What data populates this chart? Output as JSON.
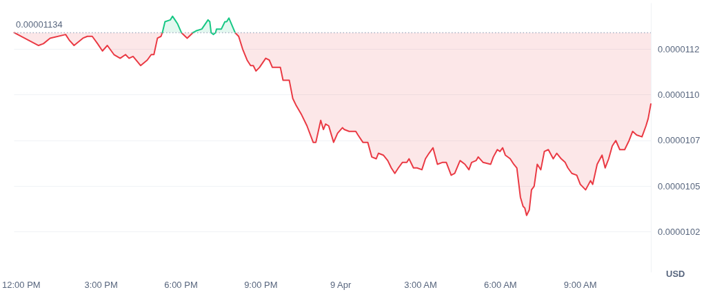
{
  "chart_data": {
    "type": "line",
    "ylabel": "USD",
    "xlim": [
      "--04-08T11:44",
      "--04-09T11:39"
    ],
    "xticks": [
      {
        "value": "--04-08T12:00",
        "label": "12:00 PM"
      },
      {
        "value": "--04-08T15:00",
        "label": "3:00 PM"
      },
      {
        "value": "--04-08T18:00",
        "label": "6:00 PM"
      },
      {
        "value": "--04-08T21:00",
        "label": "9:00 PM"
      },
      {
        "value": "--04-09T00:00",
        "label": "9 Apr"
      },
      {
        "value": "--04-09T03:00",
        "label": "3:00 AM"
      },
      {
        "value": "--04-09T06:00",
        "label": "6:00 AM"
      },
      {
        "value": "--04-09T09:00",
        "label": "9:00 AM"
      }
    ],
    "ylim": [
      1.003e-05,
      1.15e-05
    ],
    "yticks": [
      {
        "value": 1.025e-05,
        "label": "0.0000102"
      },
      {
        "value": 1.05e-05,
        "label": "0.0000105"
      },
      {
        "value": 1.075e-05,
        "label": "0.0000107"
      },
      {
        "value": 1.1e-05,
        "label": "0.0000110"
      },
      {
        "value": 1.125e-05,
        "label": "0.0000112"
      }
    ],
    "grid": "y",
    "marker": "none",
    "line_style": "solid",
    "ref_lines": [
      {
        "axis": "y",
        "value": 1.134e-05,
        "label": "0.00001134",
        "color": "#a6b0c3",
        "line_style": "dotted"
      }
    ],
    "series": [
      {
        "color": "#ea3943",
        "x": [
          "--04-08T11:44",
          "--04-08T12:39",
          "--04-08T12:50",
          "--04-08T13:05",
          "--04-08T13:40",
          "--04-08T13:48",
          "--04-08T13:59",
          "--04-08T14:19",
          "--04-08T14:29",
          "--04-08T14:40",
          "--04-08T14:52",
          "--04-08T15:03",
          "--04-08T15:14",
          "--04-08T15:29",
          "--04-08T15:43",
          "--04-08T15:55",
          "--04-08T16:03",
          "--04-08T16:12",
          "--04-08T16:29",
          "--04-08T16:44",
          "--04-08T16:53",
          "--04-08T16:59",
          "--04-08T17:07",
          "--04-08T17:15",
          "--04-08T17:18",
          "--04-08T17:19",
          "--04-08T18:01",
          "--04-08T18:14",
          "--04-08T18:27",
          "--04-08T18:28",
          "--04-08T20:02",
          "--04-08T20:10",
          "--04-08T20:19",
          "--04-08T20:29",
          "--04-08T20:37",
          "--04-08T20:43",
          "--04-08T20:49",
          "--04-08T20:57",
          "--04-08T21:11",
          "--04-08T21:19",
          "--04-08T21:26",
          "--04-08T21:34",
          "--04-08T21:44",
          "--04-08T21:50",
          "--04-08T22:04",
          "--04-08T22:12",
          "--04-08T22:20",
          "--04-08T22:32",
          "--04-08T22:44",
          "--04-08T22:58",
          "--04-08T23:04",
          "--04-08T23:15",
          "--04-08T23:21",
          "--04-08T23:26",
          "--04-08T23:33",
          "--04-08T23:44",
          "--04-08T23:53",
          "--04-09T00:04",
          "--04-09T00:08",
          "--04-09T00:19",
          "--04-09T00:34",
          "--04-09T00:39",
          "--04-09T00:50",
          "--04-09T01:01",
          "--04-09T01:10",
          "--04-09T01:20",
          "--04-09T01:25",
          "--04-09T01:36",
          "--04-09T01:46",
          "--04-09T01:54",
          "--04-09T02:02",
          "--04-09T02:10",
          "--04-09T02:19",
          "--04-09T02:29",
          "--04-09T02:34",
          "--04-09T02:44",
          "--04-09T02:52",
          "--04-09T03:03",
          "--04-09T03:11",
          "--04-09T03:19",
          "--04-09T03:28",
          "--04-09T03:38",
          "--04-09T03:49",
          "--04-09T03:58",
          "--04-09T04:09",
          "--04-09T04:17",
          "--04-09T04:29",
          "--04-09T04:40",
          "--04-09T04:49",
          "--04-09T04:55",
          "--04-09T05:05",
          "--04-09T05:10",
          "--04-09T05:21",
          "--04-09T05:38",
          "--04-09T05:44",
          "--04-09T05:53",
          "--04-09T05:59",
          "--04-09T06:05",
          "--04-09T06:11",
          "--04-09T06:22",
          "--04-09T06:30",
          "--04-09T06:37",
          "--04-09T06:45",
          "--04-09T06:51",
          "--04-09T06:55",
          "--04-09T06:59",
          "--04-09T07:05",
          "--04-09T07:10",
          "--04-09T07:16",
          "--04-09T07:23",
          "--04-09T07:31",
          "--04-09T07:39",
          "--04-09T07:48",
          "--04-09T07:59",
          "--04-09T08:07",
          "--04-09T08:17",
          "--04-09T08:26",
          "--04-09T08:32",
          "--04-09T08:41",
          "--04-09T08:52",
          "--04-09T09:00",
          "--04-09T09:12",
          "--04-09T09:23",
          "--04-09T09:28",
          "--04-09T09:38",
          "--04-09T09:49",
          "--04-09T09:56",
          "--04-09T10:04",
          "--04-09T10:12",
          "--04-09T10:20",
          "--04-09T10:29",
          "--04-09T10:40",
          "--04-09T10:50",
          "--04-09T10:58",
          "--04-09T11:07",
          "--04-09T11:19",
          "--04-09T11:28",
          "--04-09T11:33",
          "--04-09T11:39"
        ],
        "values": [
          1.134e-05,
          1.127e-05,
          1.128e-05,
          1.131e-05,
          1.133e-05,
          1.13e-05,
          1.127e-05,
          1.131e-05,
          1.132e-05,
          1.132e-05,
          1.128e-05,
          1.124e-05,
          1.127e-05,
          1.122e-05,
          1.12e-05,
          1.122e-05,
          1.12e-05,
          1.121e-05,
          1.116e-05,
          1.119e-05,
          1.122e-05,
          1.122e-05,
          1.131e-05,
          1.132e-05,
          1.134e-05,
          null,
          1.134e-05,
          1.131e-05,
          1.134e-05,
          null,
          1.134e-05,
          1.132e-05,
          1.125e-05,
          1.119e-05,
          1.116e-05,
          1.116e-05,
          1.113e-05,
          1.115e-05,
          1.12e-05,
          1.119e-05,
          1.115e-05,
          1.115e-05,
          1.115e-05,
          1.108e-05,
          1.108e-05,
          1.098e-05,
          1.094e-05,
          1.089e-05,
          1.083e-05,
          1.074e-05,
          1.074e-05,
          1.086e-05,
          1.081e-05,
          1.084e-05,
          1.083e-05,
          1.074e-05,
          1.079e-05,
          1.082e-05,
          1.081e-05,
          1.08e-05,
          1.08e-05,
          1.078e-05,
          1.074e-05,
          1.074e-05,
          1.066e-05,
          1.065e-05,
          1.068e-05,
          1.067e-05,
          1.064e-05,
          1.06e-05,
          1.057e-05,
          1.06e-05,
          1.063e-05,
          1.063e-05,
          1.065e-05,
          1.06e-05,
          1.06e-05,
          1.059e-05,
          1.065e-05,
          1.068e-05,
          1.071e-05,
          1.062e-05,
          1.063e-05,
          1.063e-05,
          1.056e-05,
          1.057e-05,
          1.064e-05,
          1.062e-05,
          1.059e-05,
          1.063e-05,
          1.064e-05,
          1.066e-05,
          1.063e-05,
          1.062e-05,
          1.066e-05,
          1.07e-05,
          1.069e-05,
          1.071e-05,
          1.067e-05,
          1.065e-05,
          1.062e-05,
          1.06e-05,
          1.044e-05,
          1.039e-05,
          1.038e-05,
          1.034e-05,
          1.037e-05,
          1.048e-05,
          1.05e-05,
          1.062e-05,
          1.059e-05,
          1.069e-05,
          1.07e-05,
          1.065e-05,
          1.068e-05,
          1.065e-05,
          1.063e-05,
          1.06e-05,
          1.057e-05,
          1.056e-05,
          1.051e-05,
          1.048e-05,
          1.053e-05,
          1.051e-05,
          1.062e-05,
          1.067e-05,
          1.06e-05,
          1.065e-05,
          1.072e-05,
          1.075e-05,
          1.07e-05,
          1.07e-05,
          1.075e-05,
          1.08e-05,
          1.078e-05,
          1.077e-05,
          1.083e-05,
          1.087e-05,
          1.095e-05
        ],
        "lower": [
          1.134e-05,
          1.127e-05,
          1.128e-05,
          1.131e-05,
          1.133e-05,
          1.13e-05,
          1.127e-05,
          1.131e-05,
          1.132e-05,
          1.132e-05,
          1.128e-05,
          1.124e-05,
          1.127e-05,
          1.122e-05,
          1.12e-05,
          1.122e-05,
          1.12e-05,
          1.121e-05,
          1.116e-05,
          1.119e-05,
          1.122e-05,
          1.122e-05,
          1.131e-05,
          1.132e-05,
          1.134e-05,
          null,
          1.134e-05,
          1.131e-05,
          1.134e-05,
          null,
          1.134e-05,
          1.132e-05,
          1.125e-05,
          1.119e-05,
          1.116e-05,
          1.116e-05,
          1.113e-05,
          1.115e-05,
          1.12e-05,
          1.119e-05,
          1.115e-05,
          1.115e-05,
          1.115e-05,
          1.108e-05,
          1.108e-05,
          1.098e-05,
          1.094e-05,
          1.089e-05,
          1.083e-05,
          1.074e-05,
          1.074e-05,
          1.086e-05,
          1.081e-05,
          1.084e-05,
          1.083e-05,
          1.074e-05,
          1.079e-05,
          1.082e-05,
          1.081e-05,
          1.08e-05,
          1.08e-05,
          1.078e-05,
          1.074e-05,
          1.074e-05,
          1.066e-05,
          1.065e-05,
          1.068e-05,
          1.067e-05,
          1.064e-05,
          1.06e-05,
          1.057e-05,
          1.06e-05,
          1.063e-05,
          1.063e-05,
          1.065e-05,
          1.06e-05,
          1.06e-05,
          1.059e-05,
          1.065e-05,
          1.068e-05,
          1.071e-05,
          1.062e-05,
          1.063e-05,
          1.063e-05,
          1.056e-05,
          1.057e-05,
          1.064e-05,
          1.062e-05,
          1.059e-05,
          1.063e-05,
          1.064e-05,
          1.066e-05,
          1.063e-05,
          1.062e-05,
          1.066e-05,
          1.07e-05,
          1.069e-05,
          1.071e-05,
          1.067e-05,
          1.065e-05,
          1.062e-05,
          1.06e-05,
          1.044e-05,
          1.039e-05,
          1.038e-05,
          1.034e-05,
          1.037e-05,
          1.048e-05,
          1.05e-05,
          1.062e-05,
          1.059e-05,
          1.069e-05,
          1.07e-05,
          1.065e-05,
          1.068e-05,
          1.065e-05,
          1.063e-05,
          1.06e-05,
          1.057e-05,
          1.056e-05,
          1.051e-05,
          1.048e-05,
          1.053e-05,
          1.051e-05,
          1.062e-05,
          1.067e-05,
          1.06e-05,
          1.065e-05,
          1.072e-05,
          1.075e-05,
          1.07e-05,
          1.07e-05,
          1.075e-05,
          1.08e-05,
          1.078e-05,
          1.077e-05,
          1.083e-05,
          1.087e-05,
          1.095e-05
        ],
        "upper": [
          1.134e-05,
          1.134e-05,
          1.134e-05,
          1.134e-05,
          1.134e-05,
          1.134e-05,
          1.134e-05,
          1.134e-05,
          1.134e-05,
          1.134e-05,
          1.134e-05,
          1.134e-05,
          1.134e-05,
          1.134e-05,
          1.134e-05,
          1.134e-05,
          1.134e-05,
          1.134e-05,
          1.134e-05,
          1.134e-05,
          1.134e-05,
          1.134e-05,
          1.134e-05,
          1.134e-05,
          1.134e-05,
          null,
          1.134e-05,
          1.134e-05,
          1.134e-05,
          null,
          1.134e-05,
          1.134e-05,
          1.134e-05,
          1.134e-05,
          1.134e-05,
          1.134e-05,
          1.134e-05,
          1.134e-05,
          1.134e-05,
          1.134e-05,
          1.134e-05,
          1.134e-05,
          1.134e-05,
          1.134e-05,
          1.134e-05,
          1.134e-05,
          1.134e-05,
          1.134e-05,
          1.134e-05,
          1.134e-05,
          1.134e-05,
          1.134e-05,
          1.134e-05,
          1.134e-05,
          1.134e-05,
          1.134e-05,
          1.134e-05,
          1.134e-05,
          1.134e-05,
          1.134e-05,
          1.134e-05,
          1.134e-05,
          1.134e-05,
          1.134e-05,
          1.134e-05,
          1.134e-05,
          1.134e-05,
          1.134e-05,
          1.134e-05,
          1.134e-05,
          1.134e-05,
          1.134e-05,
          1.134e-05,
          1.134e-05,
          1.134e-05,
          1.134e-05,
          1.134e-05,
          1.134e-05,
          1.134e-05,
          1.134e-05,
          1.134e-05,
          1.134e-05,
          1.134e-05,
          1.134e-05,
          1.134e-05,
          1.134e-05,
          1.134e-05,
          1.134e-05,
          1.134e-05,
          1.134e-05,
          1.134e-05,
          1.134e-05,
          1.134e-05,
          1.134e-05,
          1.134e-05,
          1.134e-05,
          1.134e-05,
          1.134e-05,
          1.134e-05,
          1.134e-05,
          1.134e-05,
          1.134e-05,
          1.134e-05,
          1.134e-05,
          1.134e-05,
          1.134e-05,
          1.134e-05,
          1.134e-05,
          1.134e-05,
          1.134e-05,
          1.134e-05,
          1.134e-05,
          1.134e-05,
          1.134e-05,
          1.134e-05,
          1.134e-05,
          1.134e-05,
          1.134e-05,
          1.134e-05,
          1.134e-05,
          1.134e-05,
          1.134e-05,
          1.134e-05,
          1.134e-05,
          1.134e-05,
          1.134e-05,
          1.134e-05,
          1.134e-05,
          1.134e-05,
          1.134e-05,
          1.134e-05,
          1.134e-05,
          1.134e-05,
          1.134e-05,
          1.134e-05,
          1.134e-05,
          1.134e-05,
          1.134e-05,
          1.134e-05
        ]
      },
      {
        "color": "#16c784",
        "x": [
          "--04-08T17:18",
          "--04-08T17:24",
          "--04-08T17:36",
          "--04-08T17:41",
          "--04-08T17:52",
          "--04-08T18:01",
          "--04-08T18:02",
          "--04-08T18:27",
          "--04-08T18:34",
          "--04-08T18:47",
          "--04-08T19:01",
          "--04-08T19:05",
          "--04-08T19:08",
          "--04-08T19:13",
          "--04-08T19:18",
          "--04-08T19:20",
          "--04-08T19:31",
          "--04-08T19:39",
          "--04-08T19:43",
          "--04-08T19:48",
          "--04-08T20:02"
        ],
        "values": [
          1.134e-05,
          1.14e-05,
          1.141e-05,
          1.143e-05,
          1.139e-05,
          1.134e-05,
          null,
          1.134e-05,
          1.135e-05,
          1.136e-05,
          1.141e-05,
          1.14e-05,
          1.134e-05,
          1.133e-05,
          1.134e-05,
          1.136e-05,
          1.136e-05,
          1.14e-05,
          1.14e-05,
          1.142e-05,
          1.134e-05
        ],
        "lower": [
          1.134e-05,
          1.134e-05,
          1.134e-05,
          1.134e-05,
          1.134e-05,
          1.134e-05,
          null,
          1.134e-05,
          1.134e-05,
          1.134e-05,
          1.134e-05,
          1.134e-05,
          1.134e-05,
          1.133e-05,
          1.134e-05,
          1.134e-05,
          1.134e-05,
          1.134e-05,
          1.134e-05,
          1.134e-05,
          1.134e-05
        ],
        "upper": [
          1.134e-05,
          1.14e-05,
          1.141e-05,
          1.143e-05,
          1.139e-05,
          1.134e-05,
          null,
          1.134e-05,
          1.135e-05,
          1.136e-05,
          1.141e-05,
          1.14e-05,
          1.134e-05,
          1.133e-05,
          1.134e-05,
          1.136e-05,
          1.136e-05,
          1.14e-05,
          1.14e-05,
          1.142e-05,
          1.134e-05
        ]
      }
    ]
  }
}
